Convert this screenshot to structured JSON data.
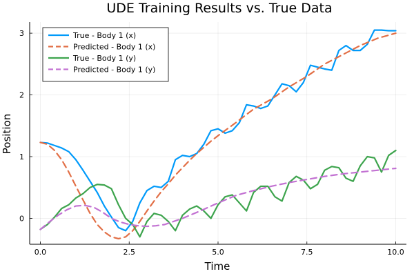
{
  "chart_data": {
    "type": "line",
    "title": "UDE Training Results vs. True Data",
    "xlabel": "Time",
    "ylabel": "Position",
    "xlim": [
      -0.3,
      10.3
    ],
    "ylim": [
      -0.42,
      3.18
    ],
    "xticks": [
      0,
      2.5,
      5,
      7.5,
      10
    ],
    "xtick_labels": [
      "0.0",
      "2.5",
      "5.0",
      "7.5",
      "10.0"
    ],
    "yticks": [
      0,
      1,
      2,
      3
    ],
    "ytick_labels": [
      "0",
      "1",
      "2",
      "3"
    ],
    "grid": true,
    "legend_position": "top-left",
    "series": [
      {
        "name": "True - Body 1 (x)",
        "color": "#009AFA",
        "dash": "solid",
        "x": [
          0,
          0.2,
          0.4,
          0.6,
          0.8,
          1.0,
          1.2,
          1.4,
          1.6,
          1.8,
          2.0,
          2.2,
          2.4,
          2.6,
          2.8,
          3.0,
          3.2,
          3.4,
          3.6,
          3.8,
          4.0,
          4.2,
          4.4,
          4.6,
          4.8,
          5.0,
          5.2,
          5.4,
          5.6,
          5.8,
          6.0,
          6.2,
          6.4,
          6.6,
          6.8,
          7.0,
          7.2,
          7.4,
          7.6,
          7.8,
          8.0,
          8.2,
          8.4,
          8.6,
          8.8,
          9.0,
          9.2,
          9.4,
          9.6,
          9.8,
          10.0
        ],
        "y": [
          1.23,
          1.22,
          1.18,
          1.14,
          1.08,
          0.95,
          0.78,
          0.6,
          0.42,
          0.2,
          0.02,
          -0.15,
          -0.2,
          -0.05,
          0.25,
          0.45,
          0.52,
          0.5,
          0.6,
          0.95,
          1.02,
          1.0,
          1.05,
          1.2,
          1.42,
          1.45,
          1.38,
          1.42,
          1.55,
          1.84,
          1.82,
          1.78,
          1.82,
          2.0,
          2.18,
          2.15,
          2.05,
          2.2,
          2.48,
          2.45,
          2.42,
          2.4,
          2.72,
          2.8,
          2.72,
          2.72,
          2.82,
          3.05,
          3.05,
          3.04,
          3.04
        ]
      },
      {
        "name": "Predicted - Body 1 (x)",
        "color": "#E26F46",
        "dash": "dashed",
        "x": [
          0,
          0.2,
          0.4,
          0.6,
          0.8,
          1.0,
          1.2,
          1.4,
          1.6,
          1.8,
          2.0,
          2.2,
          2.4,
          2.6,
          2.8,
          3.0,
          3.2,
          3.4,
          3.6,
          3.8,
          4.0,
          4.2,
          4.4,
          4.6,
          4.8,
          5.0,
          5.5,
          6.0,
          6.5,
          7.0,
          7.5,
          8.0,
          8.5,
          9.0,
          9.5,
          10.0
        ],
        "y": [
          1.23,
          1.2,
          1.1,
          0.95,
          0.75,
          0.52,
          0.3,
          0.08,
          -0.1,
          -0.22,
          -0.3,
          -0.33,
          -0.3,
          -0.2,
          -0.05,
          0.12,
          0.28,
          0.43,
          0.56,
          0.7,
          0.82,
          0.94,
          1.05,
          1.15,
          1.25,
          1.34,
          1.55,
          1.77,
          1.93,
          2.13,
          2.3,
          2.5,
          2.65,
          2.8,
          2.92,
          3.0
        ]
      },
      {
        "name": "True - Body 1 (y)",
        "color": "#3DA44D",
        "dash": "solid",
        "x": [
          0,
          0.2,
          0.4,
          0.6,
          0.8,
          1.0,
          1.2,
          1.4,
          1.6,
          1.8,
          2.0,
          2.2,
          2.4,
          2.6,
          2.8,
          3.0,
          3.2,
          3.4,
          3.6,
          3.8,
          4.0,
          4.2,
          4.4,
          4.6,
          4.8,
          5.0,
          5.2,
          5.4,
          5.6,
          5.8,
          6.0,
          6.2,
          6.4,
          6.6,
          6.8,
          7.0,
          7.2,
          7.4,
          7.6,
          7.8,
          8.0,
          8.2,
          8.4,
          8.6,
          8.8,
          9.0,
          9.2,
          9.4,
          9.6,
          9.8,
          10.0
        ],
        "y": [
          -0.18,
          -0.1,
          0.02,
          0.16,
          0.22,
          0.33,
          0.4,
          0.5,
          0.55,
          0.54,
          0.48,
          0.22,
          0.0,
          -0.1,
          -0.3,
          -0.05,
          0.08,
          0.05,
          -0.05,
          -0.2,
          0.05,
          0.15,
          0.2,
          0.12,
          0.0,
          0.22,
          0.35,
          0.38,
          0.25,
          0.12,
          0.42,
          0.52,
          0.52,
          0.35,
          0.28,
          0.58,
          0.68,
          0.62,
          0.48,
          0.55,
          0.78,
          0.84,
          0.82,
          0.65,
          0.6,
          0.85,
          1.0,
          0.98,
          0.75,
          1.02,
          1.1
        ]
      },
      {
        "name": "Predicted - Body 1 (y)",
        "color": "#C271D2",
        "dash": "dashed",
        "x": [
          0,
          0.25,
          0.5,
          0.75,
          1.0,
          1.25,
          1.5,
          1.75,
          2.0,
          2.25,
          2.5,
          2.75,
          3.0,
          3.25,
          3.5,
          3.75,
          4.0,
          4.5,
          5.0,
          5.5,
          6.0,
          6.5,
          7.0,
          7.5,
          8.0,
          8.5,
          9.0,
          9.5,
          10.0
        ],
        "y": [
          -0.18,
          -0.06,
          0.05,
          0.14,
          0.2,
          0.21,
          0.18,
          0.1,
          0.0,
          -0.06,
          -0.1,
          -0.12,
          -0.13,
          -0.12,
          -0.1,
          -0.05,
          0.0,
          0.12,
          0.25,
          0.37,
          0.45,
          0.52,
          0.58,
          0.63,
          0.68,
          0.72,
          0.75,
          0.78,
          0.81
        ]
      }
    ]
  }
}
